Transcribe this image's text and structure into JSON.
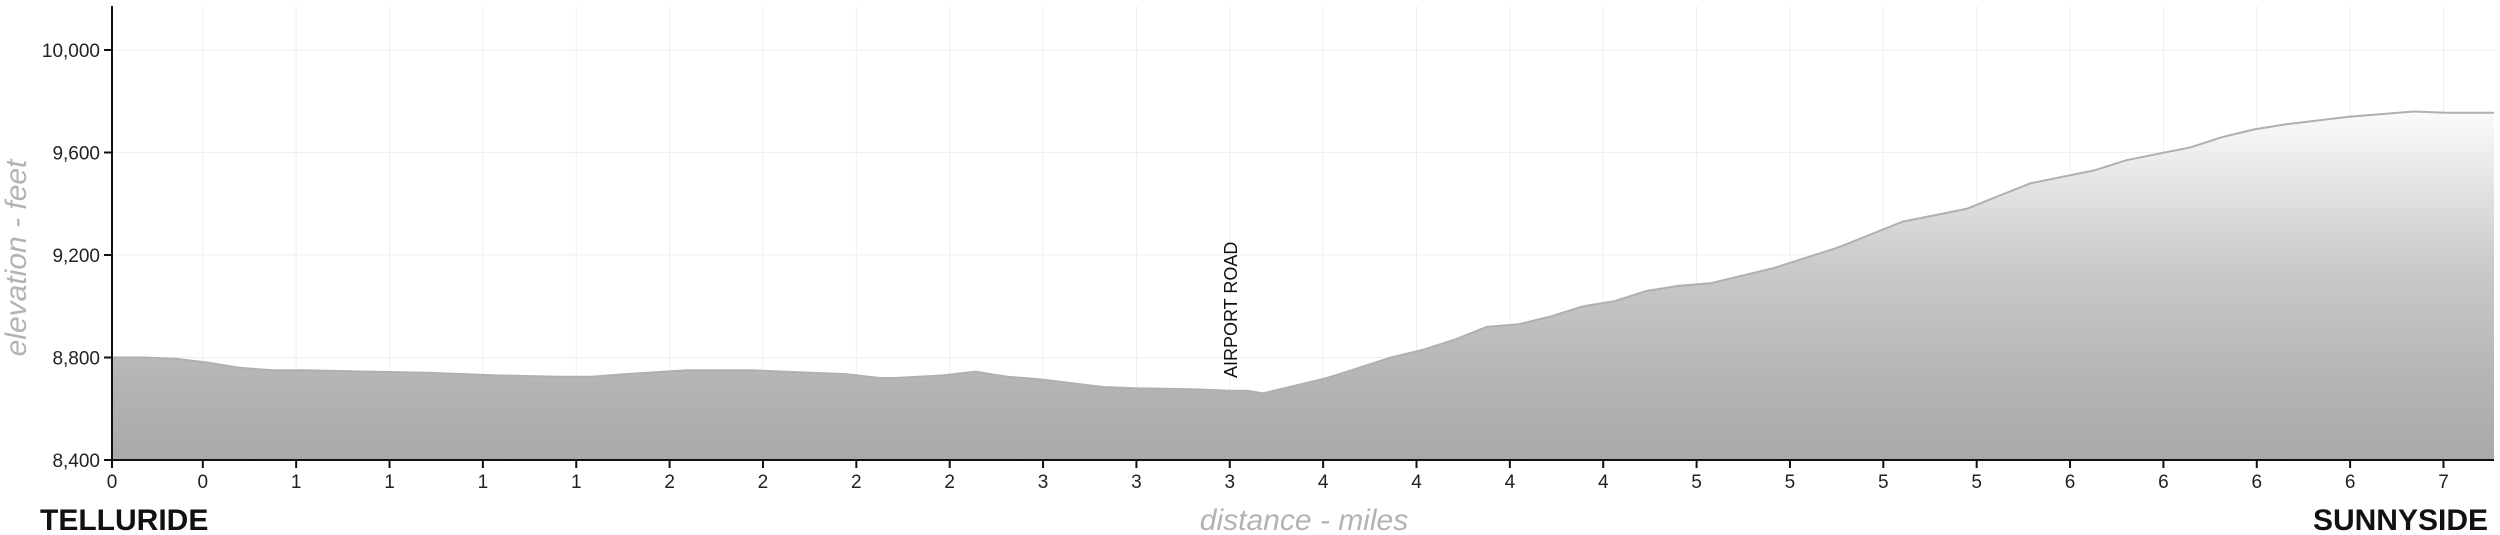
{
  "chart_data": {
    "type": "area",
    "title": "",
    "xlabel": "distance - miles",
    "ylabel": "elevation - feet",
    "xlim": [
      0,
      7.45
    ],
    "ylim": [
      8400,
      10200
    ],
    "grid": true,
    "y_ticks": [
      {
        "value": 8400,
        "label": "8,400"
      },
      {
        "value": 8800,
        "label": "8,800"
      },
      {
        "value": 9200,
        "label": "9,200"
      },
      {
        "value": 9600,
        "label": "9,600"
      },
      {
        "value": 10000,
        "label": "10,000"
      }
    ],
    "x_ticks": [
      {
        "value": 0.0,
        "label": "0"
      },
      {
        "value": 0.284,
        "label": "0"
      },
      {
        "value": 0.576,
        "label": "1"
      },
      {
        "value": 0.868,
        "label": "1"
      },
      {
        "value": 1.16,
        "label": "1"
      },
      {
        "value": 1.452,
        "label": "1"
      },
      {
        "value": 1.744,
        "label": "2"
      },
      {
        "value": 2.036,
        "label": "2"
      },
      {
        "value": 2.328,
        "label": "2"
      },
      {
        "value": 2.62,
        "label": "2"
      },
      {
        "value": 2.912,
        "label": "3"
      },
      {
        "value": 3.204,
        "label": "3"
      },
      {
        "value": 3.496,
        "label": "3"
      },
      {
        "value": 3.788,
        "label": "4"
      },
      {
        "value": 4.08,
        "label": "4"
      },
      {
        "value": 4.372,
        "label": "4"
      },
      {
        "value": 4.664,
        "label": "4"
      },
      {
        "value": 4.956,
        "label": "5"
      },
      {
        "value": 5.248,
        "label": "5"
      },
      {
        "value": 5.54,
        "label": "5"
      },
      {
        "value": 5.832,
        "label": "5"
      },
      {
        "value": 6.124,
        "label": "6"
      },
      {
        "value": 6.416,
        "label": "6"
      },
      {
        "value": 6.708,
        "label": "6"
      },
      {
        "value": 7.0,
        "label": "6"
      },
      {
        "value": 7.292,
        "label": "7"
      }
    ],
    "series": [
      {
        "x": [
          0.0,
          0.1,
          0.2,
          0.3,
          0.4,
          0.5,
          0.6,
          0.8,
          1.0,
          1.2,
          1.4,
          1.5,
          1.6,
          1.8,
          2.0,
          2.1,
          2.3,
          2.4,
          2.45,
          2.6,
          2.7,
          2.8,
          2.9,
          3.0,
          3.1,
          3.2,
          3.3,
          3.4,
          3.5,
          3.55,
          3.6,
          3.7,
          3.8,
          3.9,
          4.0,
          4.1,
          4.2,
          4.3,
          4.4,
          4.5,
          4.6,
          4.7,
          4.8,
          4.9,
          5.0,
          5.2,
          5.4,
          5.6,
          5.8,
          5.9,
          6.0,
          6.2,
          6.3,
          6.5,
          6.6,
          6.7,
          6.8,
          7.0,
          7.2,
          7.3,
          7.45
        ],
        "values": [
          8800,
          8800,
          8795,
          8780,
          8760,
          8750,
          8750,
          8745,
          8740,
          8730,
          8725,
          8725,
          8735,
          8750,
          8750,
          8745,
          8735,
          8720,
          8720,
          8730,
          8745,
          8725,
          8715,
          8700,
          8685,
          8680,
          8678,
          8675,
          8670,
          8670,
          8660,
          8690,
          8720,
          8760,
          8800,
          8830,
          8870,
          8920,
          8930,
          8960,
          9000,
          9020,
          9060,
          9080,
          9090,
          9150,
          9230,
          9330,
          9380,
          9430,
          9480,
          9530,
          9570,
          9620,
          9660,
          9690,
          9710,
          9740,
          9760,
          9755,
          9755
        ]
      }
    ],
    "annotations": [
      {
        "label": "AIRPORT ROAD",
        "x": 3.55
      }
    ],
    "places": {
      "start": "TELLURIDE",
      "end": "SUNNYSIDE"
    }
  }
}
